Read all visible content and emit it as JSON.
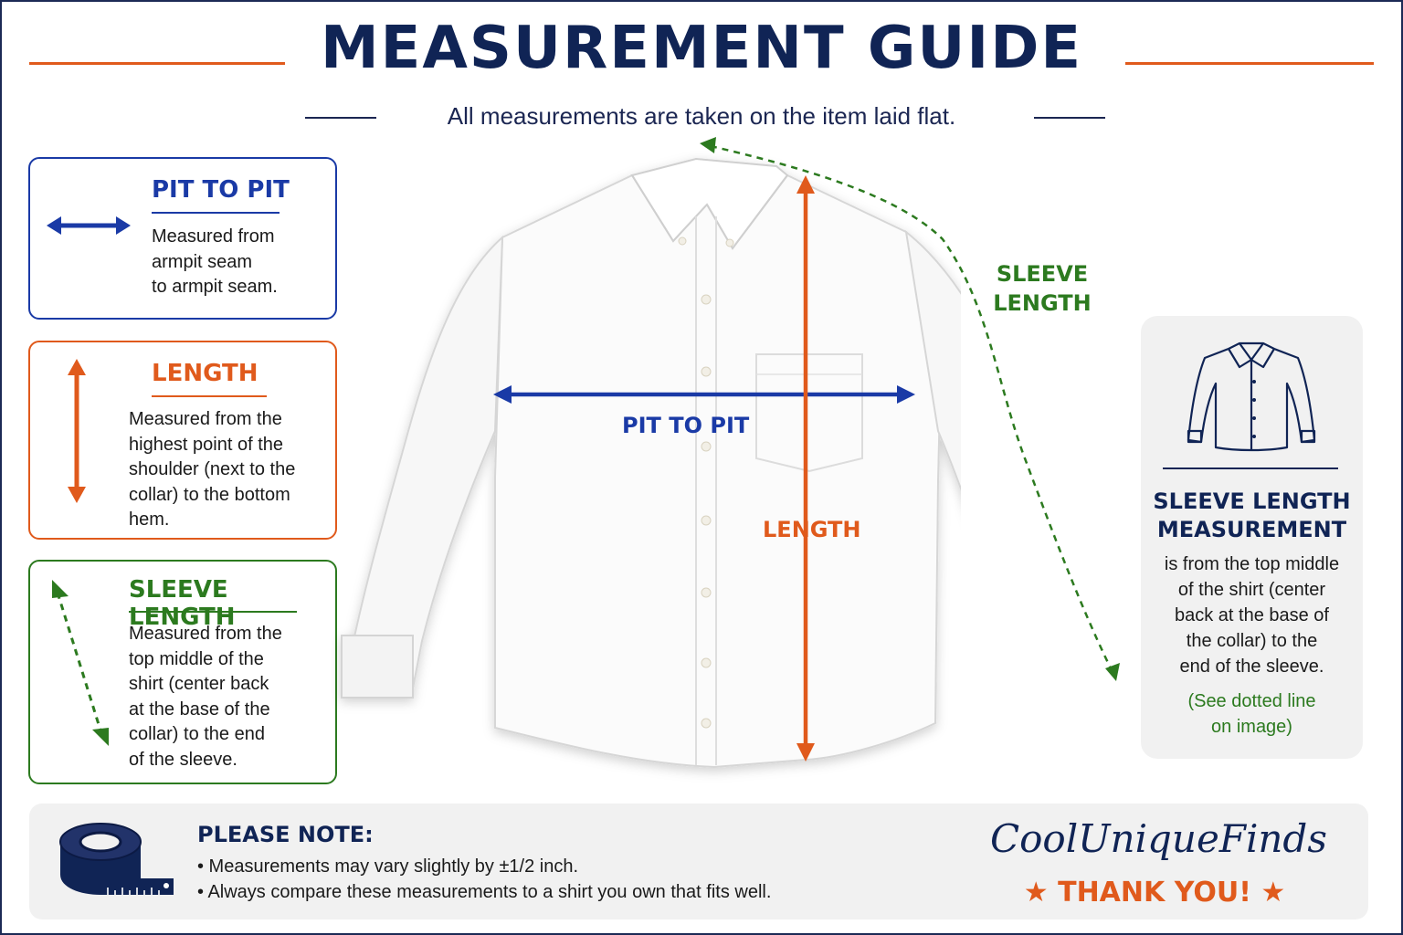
{
  "header": {
    "title": "MEASUREMENT GUIDE",
    "subtitle": "All measurements are taken on the item laid flat."
  },
  "cards": {
    "pit_to_pit": {
      "title": "PIT TO PIT",
      "lines": [
        "Measured from",
        "armpit seam",
        "to armpit seam."
      ]
    },
    "length": {
      "title": "LENGTH",
      "lines": [
        "Measured from the",
        "highest point of the",
        "shoulder (next to the",
        "collar) to the bottom",
        "hem."
      ]
    },
    "sleeve": {
      "title": "SLEEVE LENGTH",
      "lines": [
        "Measured from the",
        "top middle of the",
        "shirt (center back",
        "at the base of the",
        "collar) to the end",
        "of the sleeve."
      ]
    }
  },
  "shirt_labels": {
    "pit_to_pit": "PIT TO PIT",
    "length": "LENGTH",
    "sleeve_line1": "SLEEVE",
    "sleeve_line2": "LENGTH"
  },
  "side_card": {
    "title_line1": "SLEEVE LENGTH",
    "title_line2": "MEASUREMENT",
    "lines": [
      "is from the top middle",
      "of the shirt (center",
      "back at the base of",
      "the collar) to the",
      "end of the sleeve."
    ],
    "note_lines": [
      "(See dotted line",
      "on image)"
    ]
  },
  "note": {
    "title": "PLEASE NOTE:",
    "items": [
      "• Measurements may vary slightly by ±1/2 inch.",
      "• Always compare these measurements to a shirt you own that fits well."
    ],
    "brand": "CoolUniqueFinds",
    "thanks": "★ THANK YOU! ★"
  },
  "colors": {
    "navy": "#102455",
    "blue": "#1a3aa6",
    "orange": "#e05a1c",
    "green": "#2c7a1f"
  },
  "icons": [
    "double-arrow-horizontal-icon",
    "double-arrow-vertical-icon",
    "dashed-arrow-diagonal-icon",
    "shirt-outline-icon",
    "measuring-tape-icon",
    "star-icon"
  ]
}
